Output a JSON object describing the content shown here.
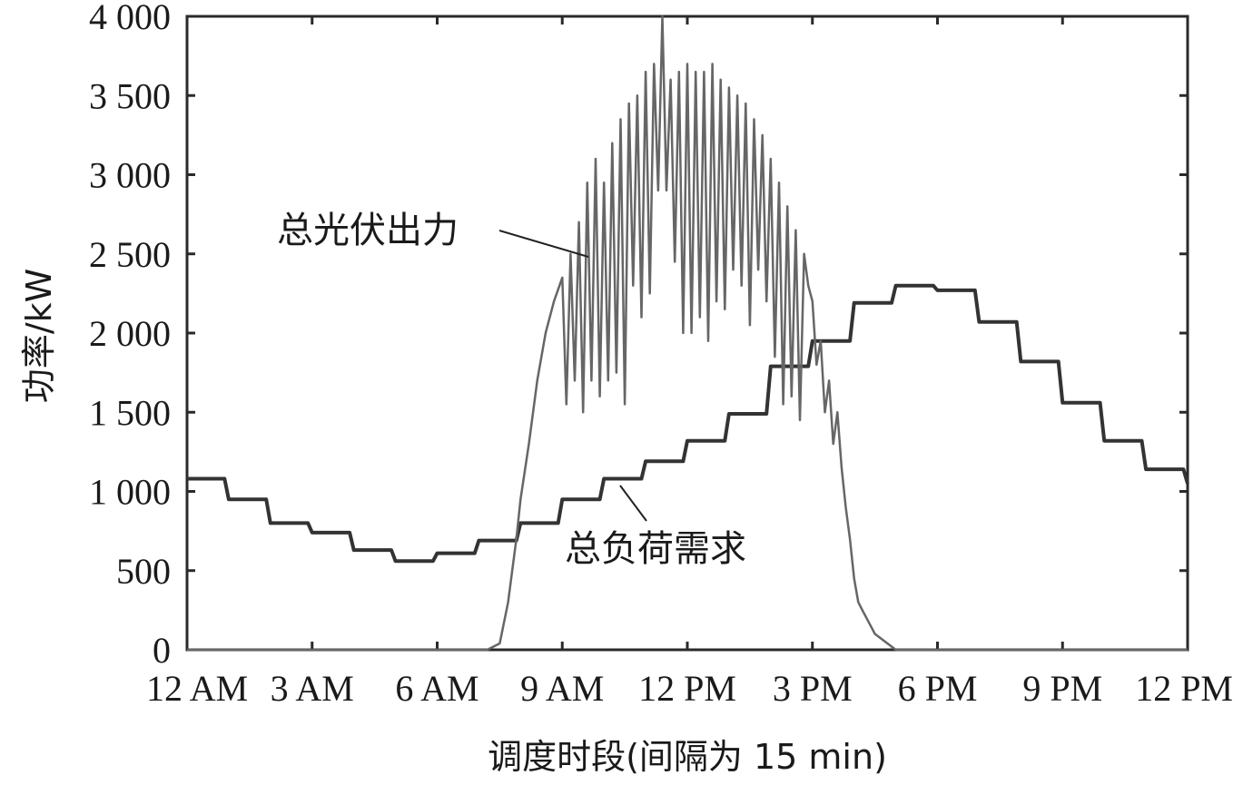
{
  "chart_data": {
    "type": "line",
    "title": "",
    "xlabel": "调度时段(间隔为 15 min)",
    "ylabel": "功率/kW",
    "ylim": [
      0,
      4000
    ],
    "xlim": [
      0,
      24
    ],
    "x_ticks": [
      {
        "value": 0,
        "label": "12 AM"
      },
      {
        "value": 3,
        "label": "3 AM"
      },
      {
        "value": 6,
        "label": "6 AM"
      },
      {
        "value": 9,
        "label": "9 AM"
      },
      {
        "value": 12,
        "label": "12 PM"
      },
      {
        "value": 15,
        "label": "3 PM"
      },
      {
        "value": 18,
        "label": "6 PM"
      },
      {
        "value": 21,
        "label": "9 PM"
      },
      {
        "value": 24,
        "label": "12 PM"
      }
    ],
    "y_ticks": [
      {
        "value": 0,
        "label": "0"
      },
      {
        "value": 500,
        "label": "500"
      },
      {
        "value": 1000,
        "label": "1 000"
      },
      {
        "value": 1500,
        "label": "1 500"
      },
      {
        "value": 2000,
        "label": "2 000"
      },
      {
        "value": 2500,
        "label": "2 500"
      },
      {
        "value": 3000,
        "label": "3 000"
      },
      {
        "value": 3500,
        "label": "3 500"
      },
      {
        "value": 4000,
        "label": "4 000"
      }
    ],
    "grid": false,
    "series": [
      {
        "name": "总负荷需求",
        "color": "#333333",
        "x": [
          0,
          0.9,
          1.0,
          1.9,
          2.0,
          2.9,
          3.0,
          3.9,
          4.0,
          4.9,
          5.0,
          5.9,
          6.0,
          6.9,
          7.0,
          7.9,
          8.0,
          8.9,
          9.0,
          9.9,
          10.0,
          10.9,
          11.0,
          11.9,
          12.0,
          12.9,
          13.0,
          13.9,
          14.0,
          14.9,
          15.0,
          15.9,
          16.0,
          16.9,
          17.0,
          17.9,
          18.0,
          18.9,
          19.0,
          19.9,
          20.0,
          20.9,
          21.0,
          21.9,
          22.0,
          22.9,
          23.0,
          23.9,
          24.0
        ],
        "values": [
          1080,
          1080,
          950,
          950,
          800,
          800,
          740,
          740,
          630,
          630,
          560,
          560,
          610,
          610,
          690,
          690,
          800,
          800,
          950,
          950,
          1080,
          1080,
          1190,
          1190,
          1320,
          1320,
          1490,
          1490,
          1790,
          1790,
          1950,
          1950,
          2190,
          2190,
          2300,
          2300,
          2270,
          2270,
          2070,
          2070,
          1820,
          1820,
          1560,
          1560,
          1320,
          1320,
          1140,
          1140,
          1050
        ]
      },
      {
        "name": "总光伏出力",
        "color": "#666666",
        "x": [
          0,
          7.2,
          7.5,
          7.7,
          7.9,
          8.0,
          8.2,
          8.4,
          8.6,
          8.8,
          9.0,
          9.1,
          9.2,
          9.3,
          9.4,
          9.5,
          9.6,
          9.7,
          9.8,
          9.9,
          10.0,
          10.1,
          10.2,
          10.3,
          10.4,
          10.5,
          10.6,
          10.7,
          10.8,
          10.9,
          11.0,
          11.1,
          11.2,
          11.3,
          11.4,
          11.5,
          11.6,
          11.7,
          11.8,
          11.9,
          12.0,
          12.1,
          12.2,
          12.3,
          12.4,
          12.5,
          12.6,
          12.7,
          12.8,
          12.9,
          13.0,
          13.1,
          13.2,
          13.3,
          13.4,
          13.5,
          13.6,
          13.7,
          13.8,
          13.9,
          14.0,
          14.1,
          14.2,
          14.3,
          14.4,
          14.5,
          14.6,
          14.7,
          14.8,
          14.9,
          15.0,
          15.1,
          15.2,
          15.3,
          15.4,
          15.5,
          15.6,
          15.7,
          15.8,
          15.9,
          16.0,
          16.1,
          16.2,
          16.3,
          16.4,
          16.5,
          16.6,
          16.7,
          16.8,
          16.9,
          17.0,
          17.2,
          17.4,
          17.5,
          17.6,
          17.7,
          17.8,
          17.9,
          18.0,
          18.2,
          24.0
        ],
        "values": [
          0,
          0,
          40,
          300,
          700,
          950,
          1300,
          1700,
          2000,
          2200,
          2350,
          1550,
          2500,
          1700,
          2700,
          1500,
          2950,
          1700,
          3100,
          1600,
          2950,
          1700,
          3200,
          1750,
          3350,
          1550,
          3450,
          2300,
          3500,
          2100,
          3650,
          2250,
          3700,
          2900,
          4000,
          2900,
          3600,
          2450,
          3650,
          2000,
          3700,
          2000,
          3650,
          2100,
          3650,
          1950,
          3700,
          2200,
          3600,
          2150,
          3550,
          2400,
          3500,
          2300,
          3450,
          2050,
          3350,
          2400,
          3250,
          2200,
          3100,
          1850,
          2950,
          1550,
          2800,
          1600,
          2650,
          1450,
          2500,
          2300,
          2200,
          1800,
          1950,
          1500,
          1700,
          1300,
          1500,
          1150,
          900,
          700,
          450,
          300,
          250,
          200,
          150,
          100,
          80,
          60,
          40,
          20,
          0,
          0,
          0,
          0,
          0,
          0,
          0,
          0,
          0,
          0,
          0
        ]
      }
    ],
    "annotations": [
      {
        "text": "总光伏出力",
        "series": "总光伏出力"
      },
      {
        "text": "总负荷需求",
        "series": "总负荷需求"
      }
    ]
  }
}
